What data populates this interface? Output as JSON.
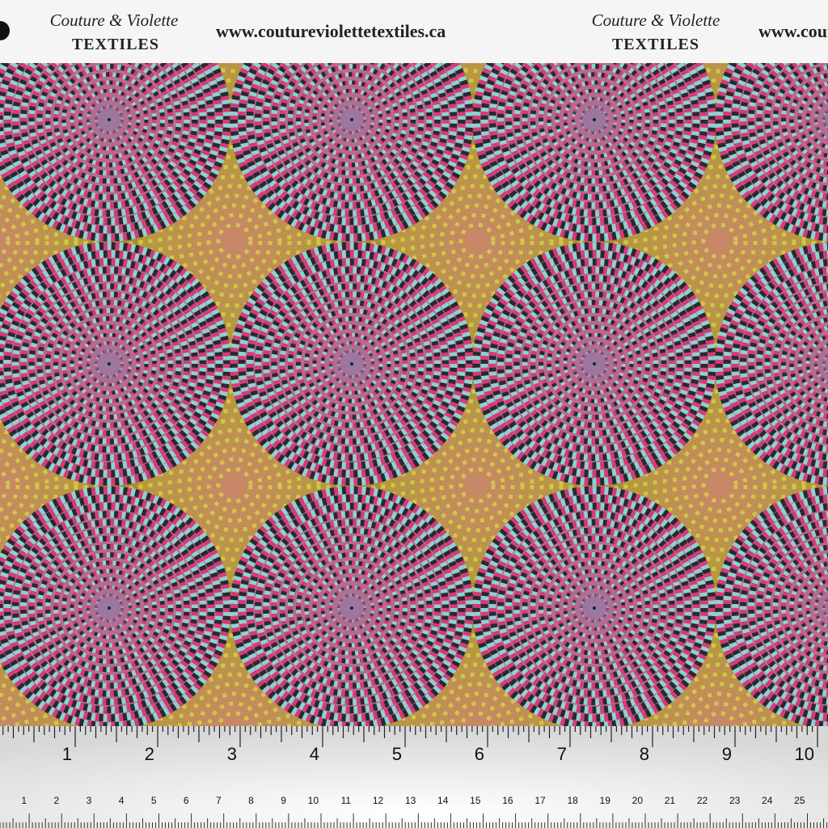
{
  "header": {
    "brand": "Couture & Violette",
    "subtitle": "TEXTILES",
    "url": "www.coutureviolettetextiles.ca"
  },
  "ruler": {
    "inches": [
      1,
      2,
      3,
      4,
      5,
      6,
      7,
      8,
      9,
      10
    ],
    "centimeters": [
      1,
      2,
      3,
      4,
      5,
      6,
      7,
      8,
      9,
      10,
      11,
      12,
      13,
      14,
      15,
      16,
      17,
      18,
      19,
      20,
      21,
      22,
      23,
      24,
      25
    ]
  }
}
